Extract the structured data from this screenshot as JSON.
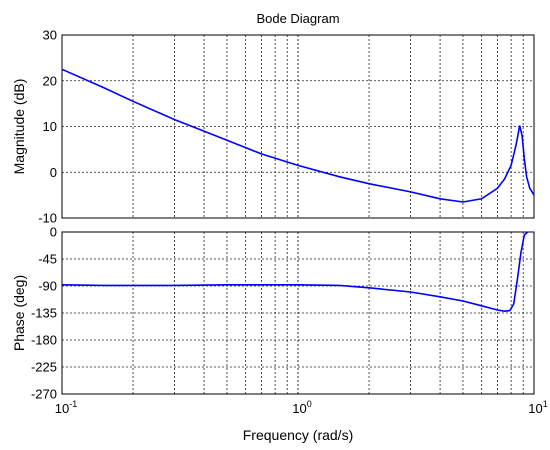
{
  "chart_data": {
    "type": "line",
    "title": "Bode Diagram",
    "xlabel": "Frequency  (rad/s)",
    "x_scale": "log",
    "xlim": [
      0.1,
      10
    ],
    "x_ticks": [
      {
        "base": "10",
        "exp": "-1"
      },
      {
        "base": "10",
        "exp": "0"
      },
      {
        "base": "10",
        "exp": "1"
      }
    ],
    "grid": true,
    "line_color": "#0000ff",
    "panels": [
      {
        "name": "magnitude",
        "ylabel": "Magnitude (dB)",
        "ylim": [
          -10,
          30
        ],
        "yticks": [
          "30",
          "20",
          "10",
          "0",
          "-10"
        ],
        "ytick_values": [
          30,
          20,
          10,
          0,
          -10
        ],
        "x": [
          0.1,
          0.15,
          0.2,
          0.3,
          0.5,
          0.7,
          1.0,
          1.5,
          2,
          3,
          4,
          5,
          6,
          7,
          7.5,
          8,
          8.4,
          8.7,
          8.9,
          9.1,
          9.3,
          9.6,
          10
        ],
        "y": [
          22.5,
          18.5,
          15.5,
          11.5,
          7.0,
          4.0,
          1.5,
          -1.0,
          -2.5,
          -4.3,
          -5.8,
          -6.5,
          -5.8,
          -3.5,
          -1.5,
          1.5,
          6.0,
          10.2,
          8.0,
          3.0,
          -1.0,
          -3.5,
          -5.0
        ]
      },
      {
        "name": "phase",
        "ylabel": "Phase (deg)",
        "ylim": [
          -270,
          0
        ],
        "yticks": [
          "0",
          "-45",
          "-90",
          "-135",
          "-180",
          "-225",
          "-270"
        ],
        "ytick_values": [
          0,
          -45,
          -90,
          -135,
          -180,
          -225,
          -270
        ],
        "x": [
          0.1,
          0.15,
          0.2,
          0.3,
          0.5,
          0.7,
          1.0,
          1.5,
          2,
          3,
          4,
          5,
          6,
          7,
          7.5,
          7.9,
          8.2,
          8.5,
          8.8,
          9.1,
          9.4
        ],
        "y": [
          -88,
          -89,
          -89,
          -89,
          -88,
          -88,
          -88,
          -89,
          -93,
          -100,
          -108,
          -115,
          -123,
          -130,
          -132,
          -131,
          -120,
          -80,
          -35,
          -5,
          0
        ]
      }
    ]
  }
}
